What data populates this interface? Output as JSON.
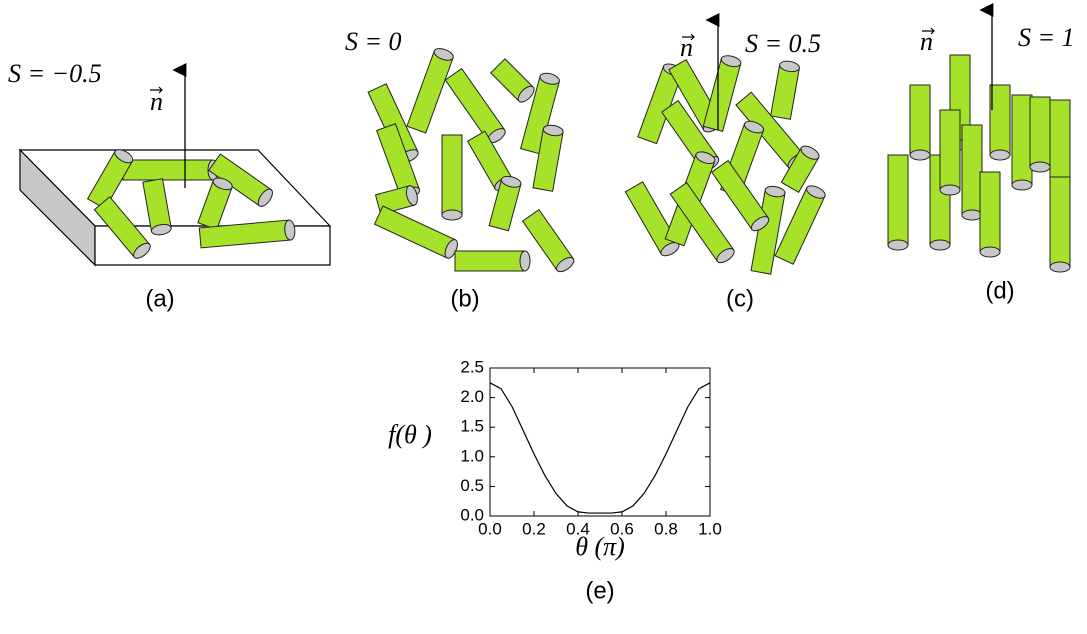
{
  "panels": [
    {
      "order_parameter": "S = −0.5",
      "director": "n",
      "label": "(a)"
    },
    {
      "order_parameter": "S = 0",
      "label": "(b)"
    },
    {
      "order_parameter": "S = 0.5",
      "director": "n",
      "label": "(c)"
    },
    {
      "order_parameter": "S = 1",
      "director": "n",
      "label": "(d)"
    }
  ],
  "chart_data": {
    "type": "line",
    "label": "(e)",
    "xlabel": "θ (π)",
    "ylabel": "f(θ )",
    "x": [
      0,
      0.05,
      0.1,
      0.15,
      0.2,
      0.25,
      0.3,
      0.35,
      0.4,
      0.45,
      0.5,
      0.55,
      0.6,
      0.65,
      0.7,
      0.75,
      0.8,
      0.85,
      0.9,
      0.95,
      1
    ],
    "values": [
      2.25,
      2.15,
      1.85,
      1.45,
      1.05,
      0.68,
      0.38,
      0.17,
      0.07,
      0.05,
      0.05,
      0.05,
      0.07,
      0.17,
      0.38,
      0.68,
      1.05,
      1.45,
      1.85,
      2.15,
      2.25
    ],
    "color": "#000000",
    "xlim": [
      0,
      1
    ],
    "ylim": [
      0,
      2.5
    ],
    "xticks": [
      {
        "value": 0,
        "label": "0.0"
      },
      0.2,
      0.4,
      0.6,
      0.8,
      {
        "value": 1,
        "label": "1.0"
      }
    ],
    "yticks": [
      {
        "value": 0,
        "label": "0.0"
      },
      0.5,
      {
        "value": 1,
        "label": "1.0"
      },
      1.5,
      {
        "value": 2,
        "label": "2.0"
      },
      2.5
    ]
  }
}
